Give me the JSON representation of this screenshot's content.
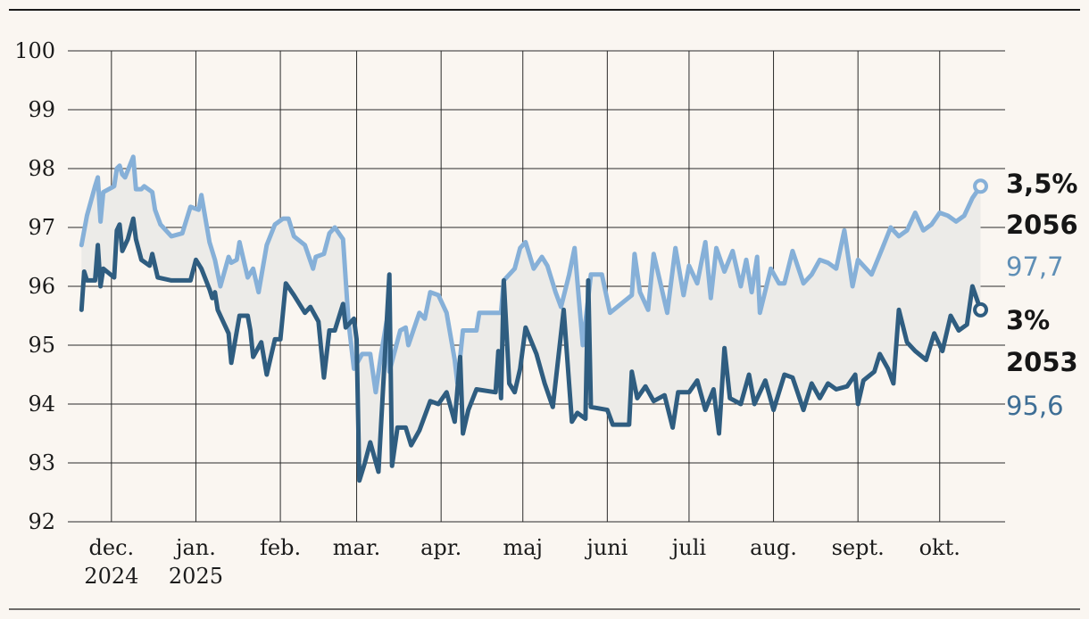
{
  "chart_data": {
    "type": "line",
    "title": "",
    "xlabel": "",
    "ylabel": "",
    "ylim": [
      92,
      100
    ],
    "yticks": [
      "100",
      "99",
      "98",
      "97",
      "96",
      "95",
      "94",
      "93",
      "92"
    ],
    "xticks": [
      {
        "line1": "dec.",
        "line2": "2024",
        "x": "2024-12-01"
      },
      {
        "line1": "jan.",
        "line2": "2025",
        "x": "2025-01-01"
      },
      {
        "line1": "feb.",
        "line2": "",
        "x": "2025-02-01"
      },
      {
        "line1": "mar.",
        "line2": "",
        "x": "2025-03-01"
      },
      {
        "line1": "apr.",
        "line2": "",
        "x": "2025-04-01"
      },
      {
        "line1": "maj",
        "line2": "",
        "x": "2025-05-01"
      },
      {
        "line1": "juni",
        "line2": "",
        "x": "2025-06-01"
      },
      {
        "line1": "juli",
        "line2": "",
        "x": "2025-07-01"
      },
      {
        "line1": "aug.",
        "line2": "",
        "x": "2025-08-01"
      },
      {
        "line1": "sept.",
        "line2": "",
        "x": "2025-09-01"
      },
      {
        "line1": "okt.",
        "line2": "",
        "x": "2025-10-01"
      }
    ],
    "grid": true,
    "fill_between_series": true,
    "colors": {
      "background": "#faf6f1",
      "grid": "#2a2a2a",
      "band": "#ecebe8",
      "rule": "#1a1a1a"
    },
    "series": [
      {
        "coupon": "3,5%",
        "maturity": "2056",
        "last_value": "97,7",
        "color": "#86b0d8",
        "points": [
          [
            "2024-11-20",
            96.7
          ],
          [
            "2024-11-22",
            97.2
          ],
          [
            "2024-11-25",
            97.7
          ],
          [
            "2024-11-26",
            97.85
          ],
          [
            "2024-11-27",
            97.1
          ],
          [
            "2024-11-28",
            97.6
          ],
          [
            "2024-12-02",
            97.7
          ],
          [
            "2024-12-03",
            98.0
          ],
          [
            "2024-12-04",
            98.05
          ],
          [
            "2024-12-05",
            97.9
          ],
          [
            "2024-12-06",
            97.85
          ],
          [
            "2024-12-09",
            98.2
          ],
          [
            "2024-12-10",
            97.65
          ],
          [
            "2024-12-12",
            97.65
          ],
          [
            "2024-12-13",
            97.7
          ],
          [
            "2024-12-16",
            97.6
          ],
          [
            "2024-12-17",
            97.3
          ],
          [
            "2024-12-19",
            97.05
          ],
          [
            "2024-12-23",
            96.85
          ],
          [
            "2024-12-27",
            96.9
          ],
          [
            "2024-12-30",
            97.35
          ],
          [
            "2025-01-02",
            97.3
          ],
          [
            "2025-01-03",
            97.55
          ],
          [
            "2025-01-06",
            96.75
          ],
          [
            "2025-01-08",
            96.45
          ],
          [
            "2025-01-10",
            96.0
          ],
          [
            "2025-01-13",
            96.5
          ],
          [
            "2025-01-14",
            96.4
          ],
          [
            "2025-01-16",
            96.45
          ],
          [
            "2025-01-17",
            96.75
          ],
          [
            "2025-01-20",
            96.15
          ],
          [
            "2025-01-22",
            96.3
          ],
          [
            "2025-01-24",
            95.9
          ],
          [
            "2025-01-27",
            96.7
          ],
          [
            "2025-01-30",
            97.05
          ],
          [
            "2025-02-02",
            97.15
          ],
          [
            "2025-02-04",
            97.15
          ],
          [
            "2025-02-06",
            96.85
          ],
          [
            "2025-02-10",
            96.7
          ],
          [
            "2025-02-13",
            96.3
          ],
          [
            "2025-02-14",
            96.5
          ],
          [
            "2025-02-17",
            96.55
          ],
          [
            "2025-02-19",
            96.9
          ],
          [
            "2025-02-21",
            97.0
          ],
          [
            "2025-02-24",
            96.8
          ],
          [
            "2025-02-26",
            95.4
          ],
          [
            "2025-02-28",
            94.6
          ],
          [
            "2025-03-03",
            94.85
          ],
          [
            "2025-03-06",
            94.85
          ],
          [
            "2025-03-08",
            94.2
          ],
          [
            "2025-03-10",
            94.85
          ],
          [
            "2025-03-12",
            95.4
          ],
          [
            "2025-03-13",
            94.55
          ],
          [
            "2025-03-17",
            95.25
          ],
          [
            "2025-03-19",
            95.3
          ],
          [
            "2025-03-20",
            95.0
          ],
          [
            "2025-03-24",
            95.55
          ],
          [
            "2025-03-26",
            95.45
          ],
          [
            "2025-03-28",
            95.9
          ],
          [
            "2025-03-31",
            95.85
          ],
          [
            "2025-04-03",
            95.55
          ],
          [
            "2025-04-06",
            94.75
          ],
          [
            "2025-04-07",
            94.35
          ],
          [
            "2025-04-09",
            95.25
          ],
          [
            "2025-04-14",
            95.25
          ],
          [
            "2025-04-15",
            95.55
          ],
          [
            "2025-04-23",
            95.55
          ],
          [
            "2025-04-24",
            96.1
          ],
          [
            "2025-04-28",
            96.3
          ],
          [
            "2025-04-30",
            96.65
          ],
          [
            "2025-05-02",
            96.75
          ],
          [
            "2025-05-05",
            96.3
          ],
          [
            "2025-05-08",
            96.5
          ],
          [
            "2025-05-10",
            96.35
          ],
          [
            "2025-05-13",
            95.9
          ],
          [
            "2025-05-15",
            95.65
          ],
          [
            "2025-05-18",
            96.2
          ],
          [
            "2025-05-20",
            96.65
          ],
          [
            "2025-05-23",
            95.0
          ],
          [
            "2025-05-26",
            96.2
          ],
          [
            "2025-05-30",
            96.2
          ],
          [
            "2025-06-02",
            95.55
          ],
          [
            "2025-06-10",
            95.85
          ],
          [
            "2025-06-11",
            96.55
          ],
          [
            "2025-06-13",
            95.9
          ],
          [
            "2025-06-16",
            95.6
          ],
          [
            "2025-06-18",
            96.55
          ],
          [
            "2025-06-23",
            95.55
          ],
          [
            "2025-06-26",
            96.65
          ],
          [
            "2025-06-29",
            95.85
          ],
          [
            "2025-07-01",
            96.35
          ],
          [
            "2025-07-04",
            96.05
          ],
          [
            "2025-07-07",
            96.75
          ],
          [
            "2025-07-09",
            95.8
          ],
          [
            "2025-07-11",
            96.65
          ],
          [
            "2025-07-14",
            96.25
          ],
          [
            "2025-07-17",
            96.6
          ],
          [
            "2025-07-20",
            96.0
          ],
          [
            "2025-07-22",
            96.45
          ],
          [
            "2025-07-24",
            95.9
          ],
          [
            "2025-07-26",
            96.5
          ],
          [
            "2025-07-27",
            95.55
          ],
          [
            "2025-07-31",
            96.3
          ],
          [
            "2025-08-03",
            96.05
          ],
          [
            "2025-08-05",
            96.05
          ],
          [
            "2025-08-08",
            96.6
          ],
          [
            "2025-08-12",
            96.05
          ],
          [
            "2025-08-15",
            96.2
          ],
          [
            "2025-08-18",
            96.45
          ],
          [
            "2025-08-21",
            96.4
          ],
          [
            "2025-08-24",
            96.3
          ],
          [
            "2025-08-27",
            96.95
          ],
          [
            "2025-08-30",
            96.0
          ],
          [
            "2025-09-01",
            96.45
          ],
          [
            "2025-09-06",
            96.2
          ],
          [
            "2025-09-10",
            96.65
          ],
          [
            "2025-09-13",
            97.0
          ],
          [
            "2025-09-16",
            96.85
          ],
          [
            "2025-09-19",
            96.95
          ],
          [
            "2025-09-22",
            97.25
          ],
          [
            "2025-09-25",
            96.95
          ],
          [
            "2025-09-28",
            97.05
          ],
          [
            "2025-10-01",
            97.25
          ],
          [
            "2025-10-04",
            97.2
          ],
          [
            "2025-10-07",
            97.1
          ],
          [
            "2025-10-10",
            97.2
          ],
          [
            "2025-10-13",
            97.5
          ],
          [
            "2025-10-16",
            97.7
          ]
        ]
      },
      {
        "coupon": "3%",
        "maturity": "2053",
        "last_value": "95,6",
        "color": "#2f5d80",
        "points": [
          [
            "2024-11-20",
            95.6
          ],
          [
            "2024-11-21",
            96.25
          ],
          [
            "2024-11-22",
            96.1
          ],
          [
            "2024-11-25",
            96.1
          ],
          [
            "2024-11-26",
            96.7
          ],
          [
            "2024-11-27",
            96.0
          ],
          [
            "2024-11-28",
            96.3
          ],
          [
            "2024-12-02",
            96.15
          ],
          [
            "2024-12-03",
            96.95
          ],
          [
            "2024-12-04",
            97.05
          ],
          [
            "2024-12-05",
            96.6
          ],
          [
            "2024-12-07",
            96.8
          ],
          [
            "2024-12-09",
            97.15
          ],
          [
            "2024-12-10",
            96.8
          ],
          [
            "2024-12-12",
            96.45
          ],
          [
            "2024-12-15",
            96.35
          ],
          [
            "2024-12-16",
            96.55
          ],
          [
            "2024-12-18",
            96.15
          ],
          [
            "2024-12-23",
            96.1
          ],
          [
            "2024-12-30",
            96.1
          ],
          [
            "2025-01-01",
            96.45
          ],
          [
            "2025-01-03",
            96.3
          ],
          [
            "2025-01-06",
            95.95
          ],
          [
            "2025-01-07",
            95.8
          ],
          [
            "2025-01-08",
            95.9
          ],
          [
            "2025-01-09",
            95.6
          ],
          [
            "2025-01-13",
            95.2
          ],
          [
            "2025-01-14",
            94.7
          ],
          [
            "2025-01-17",
            95.5
          ],
          [
            "2025-01-20",
            95.5
          ],
          [
            "2025-01-21",
            95.25
          ],
          [
            "2025-01-22",
            94.8
          ],
          [
            "2025-01-25",
            95.05
          ],
          [
            "2025-01-27",
            94.5
          ],
          [
            "2025-01-30",
            95.1
          ],
          [
            "2025-02-01",
            95.1
          ],
          [
            "2025-02-03",
            96.05
          ],
          [
            "2025-02-06",
            95.85
          ],
          [
            "2025-02-10",
            95.55
          ],
          [
            "2025-02-12",
            95.65
          ],
          [
            "2025-02-15",
            95.4
          ],
          [
            "2025-02-17",
            94.45
          ],
          [
            "2025-02-19",
            95.25
          ],
          [
            "2025-02-21",
            95.25
          ],
          [
            "2025-02-24",
            95.7
          ],
          [
            "2025-02-25",
            95.3
          ],
          [
            "2025-02-28",
            95.45
          ],
          [
            "2025-03-01",
            95.1
          ],
          [
            "2025-03-02",
            92.7
          ],
          [
            "2025-03-04",
            93.0
          ],
          [
            "2025-03-06",
            93.35
          ],
          [
            "2025-03-09",
            92.85
          ],
          [
            "2025-03-13",
            96.2
          ],
          [
            "2025-03-14",
            92.95
          ],
          [
            "2025-03-16",
            93.6
          ],
          [
            "2025-03-19",
            93.6
          ],
          [
            "2025-03-21",
            93.3
          ],
          [
            "2025-03-24",
            93.55
          ],
          [
            "2025-03-28",
            94.05
          ],
          [
            "2025-03-31",
            94.0
          ],
          [
            "2025-04-03",
            94.2
          ],
          [
            "2025-04-06",
            93.7
          ],
          [
            "2025-04-08",
            94.8
          ],
          [
            "2025-04-09",
            93.5
          ],
          [
            "2025-04-11",
            93.9
          ],
          [
            "2025-04-14",
            94.25
          ],
          [
            "2025-04-21",
            94.2
          ],
          [
            "2025-04-22",
            94.9
          ],
          [
            "2025-04-23",
            94.1
          ],
          [
            "2025-04-24",
            96.1
          ],
          [
            "2025-04-26",
            94.35
          ],
          [
            "2025-04-28",
            94.2
          ],
          [
            "2025-04-30",
            94.6
          ],
          [
            "2025-05-02",
            95.3
          ],
          [
            "2025-05-06",
            94.85
          ],
          [
            "2025-05-09",
            94.35
          ],
          [
            "2025-05-12",
            93.95
          ],
          [
            "2025-05-16",
            95.6
          ],
          [
            "2025-05-19",
            93.7
          ],
          [
            "2025-05-21",
            93.85
          ],
          [
            "2025-05-24",
            93.75
          ],
          [
            "2025-05-25",
            96.1
          ],
          [
            "2025-05-26",
            93.95
          ],
          [
            "2025-06-01",
            93.9
          ],
          [
            "2025-06-03",
            93.65
          ],
          [
            "2025-06-09",
            93.65
          ],
          [
            "2025-06-10",
            94.55
          ],
          [
            "2025-06-12",
            94.1
          ],
          [
            "2025-06-15",
            94.3
          ],
          [
            "2025-06-18",
            94.05
          ],
          [
            "2025-06-22",
            94.15
          ],
          [
            "2025-06-25",
            93.6
          ],
          [
            "2025-06-27",
            94.2
          ],
          [
            "2025-07-01",
            94.2
          ],
          [
            "2025-07-04",
            94.4
          ],
          [
            "2025-07-07",
            93.9
          ],
          [
            "2025-07-10",
            94.25
          ],
          [
            "2025-07-12",
            93.5
          ],
          [
            "2025-07-14",
            94.95
          ],
          [
            "2025-07-16",
            94.1
          ],
          [
            "2025-07-20",
            94.0
          ],
          [
            "2025-07-23",
            94.5
          ],
          [
            "2025-07-25",
            94.0
          ],
          [
            "2025-07-29",
            94.4
          ],
          [
            "2025-08-01",
            93.9
          ],
          [
            "2025-08-05",
            94.5
          ],
          [
            "2025-08-08",
            94.45
          ],
          [
            "2025-08-12",
            93.9
          ],
          [
            "2025-08-15",
            94.35
          ],
          [
            "2025-08-18",
            94.1
          ],
          [
            "2025-08-21",
            94.35
          ],
          [
            "2025-08-24",
            94.25
          ],
          [
            "2025-08-28",
            94.3
          ],
          [
            "2025-08-31",
            94.5
          ],
          [
            "2025-09-01",
            94.0
          ],
          [
            "2025-09-03",
            94.4
          ],
          [
            "2025-09-07",
            94.55
          ],
          [
            "2025-09-09",
            94.85
          ],
          [
            "2025-09-12",
            94.6
          ],
          [
            "2025-09-14",
            94.35
          ],
          [
            "2025-09-16",
            95.6
          ],
          [
            "2025-09-19",
            95.05
          ],
          [
            "2025-09-22",
            94.9
          ],
          [
            "2025-09-26",
            94.75
          ],
          [
            "2025-09-29",
            95.2
          ],
          [
            "2025-10-02",
            94.9
          ],
          [
            "2025-10-05",
            95.5
          ],
          [
            "2025-10-08",
            95.25
          ],
          [
            "2025-10-11",
            95.35
          ],
          [
            "2025-10-13",
            96.0
          ],
          [
            "2025-10-16",
            95.6
          ]
        ]
      }
    ]
  }
}
